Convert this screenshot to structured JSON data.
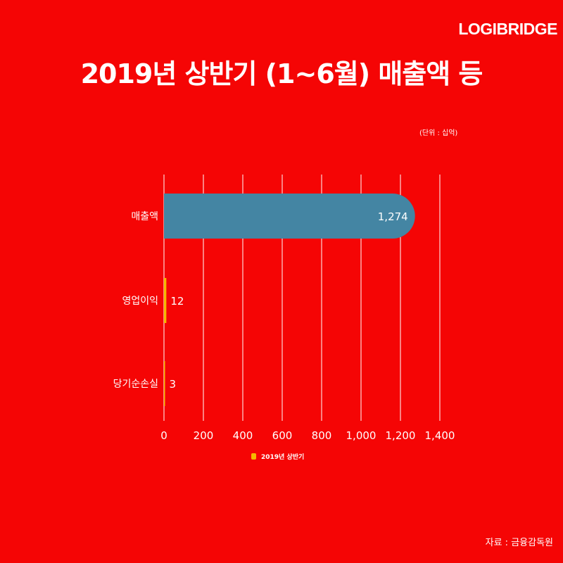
{
  "brand": "LOGIBRIDGE",
  "title": "2019년 상반기 (1~6월) 매출액 등",
  "unit": "(단위 : 십억)",
  "source": "자료 : 금융감독원",
  "colors": {
    "background": "#f50505",
    "bar": "#4485a3",
    "highlight": "#f5b800",
    "grid": "#ffffff",
    "text": "#ffffff"
  },
  "chart_data": {
    "type": "bar",
    "orientation": "horizontal",
    "categories": [
      "매출액",
      "영업이익",
      "당기순손실"
    ],
    "series": [
      {
        "name": "2019년 상반기",
        "values": [
          1274,
          12,
          3
        ]
      }
    ],
    "data_labels": [
      "1,274",
      "12",
      "3"
    ],
    "xlim": [
      0,
      1400
    ],
    "xticks": [
      0,
      200,
      400,
      600,
      800,
      1000,
      1200,
      1400
    ],
    "xtick_labels": [
      "0",
      "200",
      "400",
      "600",
      "800",
      "1,000",
      "1,200",
      "1,400"
    ],
    "grid": true,
    "legend": "bottom-left"
  }
}
